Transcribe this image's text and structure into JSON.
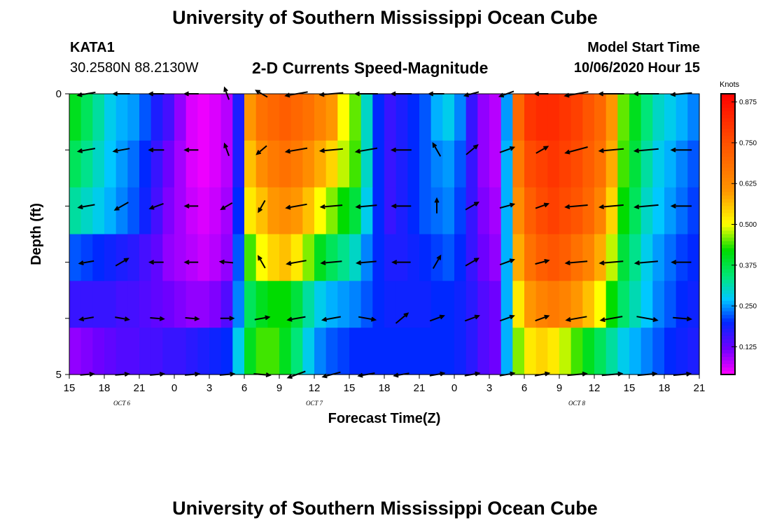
{
  "header": {
    "title": "University of Southern Mississippi Ocean Cube",
    "station": "KATA1",
    "coords": "30.2580N 88.2130W",
    "subtitle": "2-D Currents Speed-Magnitude",
    "model_label": "Model Start Time",
    "model_time": "10/06/2020 Hour 15"
  },
  "footer": {
    "title": "University of Southern Mississippi Ocean Cube"
  },
  "chart_data": {
    "type": "heatmap",
    "title": "2-D Currents Speed-Magnitude",
    "xlabel": "Forecast Time(Z)",
    "ylabel": "Depth (ft)",
    "x_start_hour": 15,
    "x_range_hours": [
      0,
      54
    ],
    "x_tick_labels": [
      "15",
      "18",
      "21",
      "0",
      "3",
      "6",
      "9",
      "12",
      "15",
      "18",
      "21",
      "0",
      "3",
      "6",
      "9",
      "12",
      "15",
      "18",
      "21"
    ],
    "date_labels": [
      {
        "text": "OCT 6",
        "hour_offset": 4.5
      },
      {
        "text": "OCT 7",
        "hour_offset": 21
      },
      {
        "text": "OCT 8",
        "hour_offset": 43.5
      }
    ],
    "y_range_ft": [
      0,
      5
    ],
    "y_tick_labels": [
      "0",
      "5"
    ],
    "depth_levels_ft": [
      0,
      1,
      2,
      3,
      4,
      5
    ],
    "colorbar": {
      "title": "Knots",
      "min": 0.04,
      "max": 0.9,
      "tick_labels": [
        "0.875",
        "0.750",
        "0.625",
        "0.500",
        "0.375",
        "0.250",
        "0.125"
      ],
      "tick_values": [
        0.875,
        0.75,
        0.625,
        0.5,
        0.375,
        0.25,
        0.125
      ]
    },
    "speed_grid_knots": [
      [
        0.4,
        0.36,
        0.32,
        0.28,
        0.26,
        0.25,
        0.22,
        0.18,
        0.15,
        0.1,
        0.06,
        0.05,
        0.06,
        0.08,
        0.18,
        0.6,
        0.68,
        0.7,
        0.72,
        0.7,
        0.68,
        0.64,
        0.6,
        0.5,
        0.45,
        0.3,
        0.2,
        0.16,
        0.18,
        0.2,
        0.22,
        0.26,
        0.28,
        0.24,
        0.16,
        0.1,
        0.08,
        0.25,
        0.7,
        0.8,
        0.82,
        0.82,
        0.8,
        0.78,
        0.74,
        0.7,
        0.6,
        0.45,
        0.4,
        0.34,
        0.3,
        0.28,
        0.26,
        0.24
      ],
      [
        0.36,
        0.33,
        0.3,
        0.27,
        0.25,
        0.23,
        0.2,
        0.16,
        0.12,
        0.09,
        0.06,
        0.05,
        0.06,
        0.08,
        0.18,
        0.56,
        0.62,
        0.66,
        0.68,
        0.66,
        0.62,
        0.58,
        0.54,
        0.48,
        0.44,
        0.3,
        0.2,
        0.16,
        0.18,
        0.2,
        0.22,
        0.24,
        0.25,
        0.22,
        0.16,
        0.1,
        0.08,
        0.26,
        0.66,
        0.76,
        0.78,
        0.8,
        0.78,
        0.76,
        0.72,
        0.68,
        0.58,
        0.44,
        0.38,
        0.32,
        0.28,
        0.26,
        0.24,
        0.22
      ],
      [
        0.32,
        0.3,
        0.28,
        0.26,
        0.24,
        0.22,
        0.19,
        0.15,
        0.11,
        0.09,
        0.07,
        0.06,
        0.07,
        0.09,
        0.2,
        0.52,
        0.56,
        0.6,
        0.62,
        0.6,
        0.56,
        0.5,
        0.46,
        0.42,
        0.38,
        0.28,
        0.2,
        0.16,
        0.18,
        0.2,
        0.22,
        0.23,
        0.24,
        0.21,
        0.16,
        0.11,
        0.09,
        0.26,
        0.62,
        0.72,
        0.76,
        0.78,
        0.76,
        0.74,
        0.7,
        0.64,
        0.54,
        0.42,
        0.36,
        0.3,
        0.27,
        0.25,
        0.23,
        0.21
      ],
      [
        0.22,
        0.21,
        0.2,
        0.19,
        0.18,
        0.17,
        0.15,
        0.13,
        0.1,
        0.09,
        0.08,
        0.07,
        0.08,
        0.1,
        0.22,
        0.44,
        0.5,
        0.54,
        0.56,
        0.52,
        0.46,
        0.4,
        0.36,
        0.33,
        0.3,
        0.24,
        0.2,
        0.18,
        0.18,
        0.19,
        0.2,
        0.21,
        0.22,
        0.2,
        0.16,
        0.12,
        0.1,
        0.26,
        0.58,
        0.68,
        0.72,
        0.74,
        0.72,
        0.68,
        0.64,
        0.58,
        0.48,
        0.38,
        0.33,
        0.28,
        0.25,
        0.23,
        0.21,
        0.2
      ],
      [
        0.16,
        0.16,
        0.16,
        0.16,
        0.15,
        0.15,
        0.14,
        0.13,
        0.12,
        0.11,
        0.1,
        0.1,
        0.11,
        0.14,
        0.24,
        0.36,
        0.4,
        0.42,
        0.42,
        0.38,
        0.32,
        0.28,
        0.26,
        0.25,
        0.24,
        0.22,
        0.2,
        0.19,
        0.19,
        0.19,
        0.19,
        0.2,
        0.2,
        0.19,
        0.17,
        0.14,
        0.12,
        0.26,
        0.52,
        0.6,
        0.64,
        0.66,
        0.64,
        0.6,
        0.56,
        0.5,
        0.42,
        0.35,
        0.31,
        0.27,
        0.24,
        0.22,
        0.2,
        0.19
      ],
      [
        0.1,
        0.11,
        0.12,
        0.13,
        0.14,
        0.14,
        0.15,
        0.15,
        0.16,
        0.16,
        0.17,
        0.18,
        0.19,
        0.2,
        0.28,
        0.4,
        0.44,
        0.44,
        0.4,
        0.34,
        0.28,
        0.24,
        0.22,
        0.21,
        0.2,
        0.2,
        0.2,
        0.2,
        0.2,
        0.2,
        0.2,
        0.2,
        0.2,
        0.19,
        0.17,
        0.14,
        0.12,
        0.26,
        0.46,
        0.52,
        0.54,
        0.52,
        0.48,
        0.44,
        0.4,
        0.36,
        0.32,
        0.28,
        0.26,
        0.24,
        0.22,
        0.2,
        0.19,
        0.18
      ]
    ],
    "vector_times_hr": [
      1.5,
      4.5,
      7.5,
      10.5,
      13.5,
      16.5,
      19.5,
      22.5,
      25.5,
      28.5,
      31.5,
      34.5,
      37.5,
      40.5,
      43.5,
      46.5,
      49.5,
      52.5
    ],
    "vector_depths_ft": [
      0,
      1,
      2,
      3,
      4,
      5
    ],
    "vector_directions_deg": [
      [
        190,
        180,
        180,
        180,
        110,
        150,
        190,
        185,
        180,
        180,
        180,
        195,
        200,
        180,
        190,
        180,
        180,
        185
      ],
      [
        190,
        190,
        180,
        180,
        110,
        220,
        190,
        185,
        190,
        180,
        120,
        40,
        20,
        30,
        195,
        185,
        185,
        180
      ],
      [
        190,
        210,
        200,
        180,
        210,
        240,
        190,
        185,
        185,
        180,
        90,
        30,
        15,
        20,
        185,
        185,
        185,
        180
      ],
      [
        190,
        30,
        180,
        180,
        175,
        120,
        190,
        185,
        185,
        180,
        60,
        30,
        20,
        15,
        185,
        185,
        185,
        180
      ],
      [
        190,
        350,
        355,
        355,
        0,
        10,
        190,
        190,
        350,
        40,
        20,
        20,
        20,
        20,
        190,
        190,
        350,
        355
      ],
      [
        5,
        5,
        5,
        5,
        5,
        355,
        200,
        195,
        190,
        190,
        10,
        10,
        10,
        10,
        5,
        5,
        5,
        5
      ]
    ],
    "vector_speeds_knots": [
      [
        0.38,
        0.3,
        0.22,
        0.15,
        0.08,
        0.1,
        0.65,
        0.7,
        0.65,
        0.52,
        0.22,
        0.2,
        0.22,
        0.12,
        0.72,
        0.8,
        0.78,
        0.55
      ],
      [
        0.34,
        0.28,
        0.2,
        0.12,
        0.08,
        0.1,
        0.6,
        0.66,
        0.6,
        0.48,
        0.22,
        0.2,
        0.22,
        0.12,
        0.68,
        0.76,
        0.74,
        0.52
      ],
      [
        0.3,
        0.24,
        0.18,
        0.1,
        0.08,
        0.1,
        0.56,
        0.6,
        0.54,
        0.44,
        0.2,
        0.2,
        0.2,
        0.12,
        0.64,
        0.74,
        0.72,
        0.5
      ],
      [
        0.2,
        0.18,
        0.14,
        0.1,
        0.09,
        0.14,
        0.48,
        0.54,
        0.48,
        0.38,
        0.2,
        0.2,
        0.2,
        0.14,
        0.6,
        0.7,
        0.66,
        0.46
      ],
      [
        0.16,
        0.15,
        0.14,
        0.12,
        0.1,
        0.2,
        0.38,
        0.42,
        0.34,
        0.26,
        0.2,
        0.2,
        0.19,
        0.16,
        0.54,
        0.62,
        0.56,
        0.4
      ],
      [
        0.12,
        0.13,
        0.15,
        0.16,
        0.18,
        0.3,
        0.42,
        0.4,
        0.3,
        0.22,
        0.2,
        0.2,
        0.2,
        0.18,
        0.46,
        0.52,
        0.44,
        0.34
      ]
    ]
  }
}
